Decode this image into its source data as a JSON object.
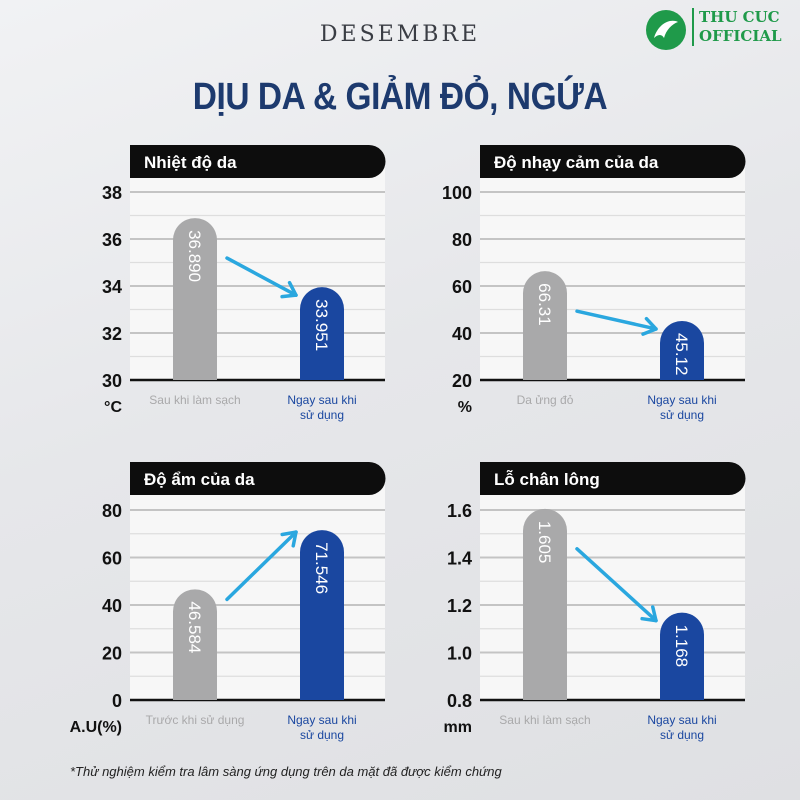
{
  "brand": "DESEMBRE",
  "logo": {
    "line1": "THU CUC",
    "line2": "OFFICIAL",
    "color": "#1f9a4a"
  },
  "title": "DỊU DA & GIẢM ĐỎ, NGỨA",
  "footnote": "*Thử nghiệm kiểm tra lâm sàng ứng dụng trên da mặt đã được kiểm chứng",
  "colors": {
    "before": "#a9a9aa",
    "after": "#1a47a0",
    "arrow": "#2aa7df",
    "title": "#1d3a6e"
  },
  "chart_data": [
    {
      "type": "bar",
      "title": "Nhiệt độ da",
      "unit": "°C",
      "ylim": [
        30,
        38
      ],
      "yticks": [
        "30",
        "32",
        "34",
        "36",
        "38"
      ],
      "categories": [
        "Sau khi làm sạch",
        "Ngay sau khi sử dụng"
      ],
      "values": [
        36.89,
        33.951
      ],
      "labels": [
        "36.890",
        "33.951"
      ],
      "trend": "down"
    },
    {
      "type": "bar",
      "title": "Độ nhạy cảm của da",
      "unit": "%",
      "ylim": [
        20,
        100
      ],
      "yticks": [
        "20",
        "40",
        "60",
        "80",
        "100"
      ],
      "categories": [
        "Da ửng đỏ",
        "Ngay sau khi sử dụng"
      ],
      "values": [
        66.31,
        45.12
      ],
      "labels": [
        "66.31",
        "45.12"
      ],
      "trend": "down"
    },
    {
      "type": "bar",
      "title": "Độ ẩm của da",
      "unit": "A.U(%)",
      "ylim": [
        0,
        80
      ],
      "yticks": [
        "0",
        "20",
        "40",
        "60",
        "80"
      ],
      "categories": [
        "Trước khi sử dụng",
        "Ngay sau khi sử dụng"
      ],
      "values": [
        46.584,
        71.546
      ],
      "labels": [
        "46.584",
        "71.546"
      ],
      "trend": "up"
    },
    {
      "type": "bar",
      "title": "Lỗ chân lông",
      "unit": "mm",
      "ylim": [
        0.8,
        1.6
      ],
      "yticks": [
        "0.8",
        "1.0",
        "1.2",
        "1.4",
        "1.6"
      ],
      "categories": [
        "Sau khi làm sạch",
        "Ngay sau khi sử dụng"
      ],
      "values": [
        1.605,
        1.168
      ],
      "labels": [
        "1.605",
        "1.168"
      ],
      "trend": "down"
    }
  ]
}
